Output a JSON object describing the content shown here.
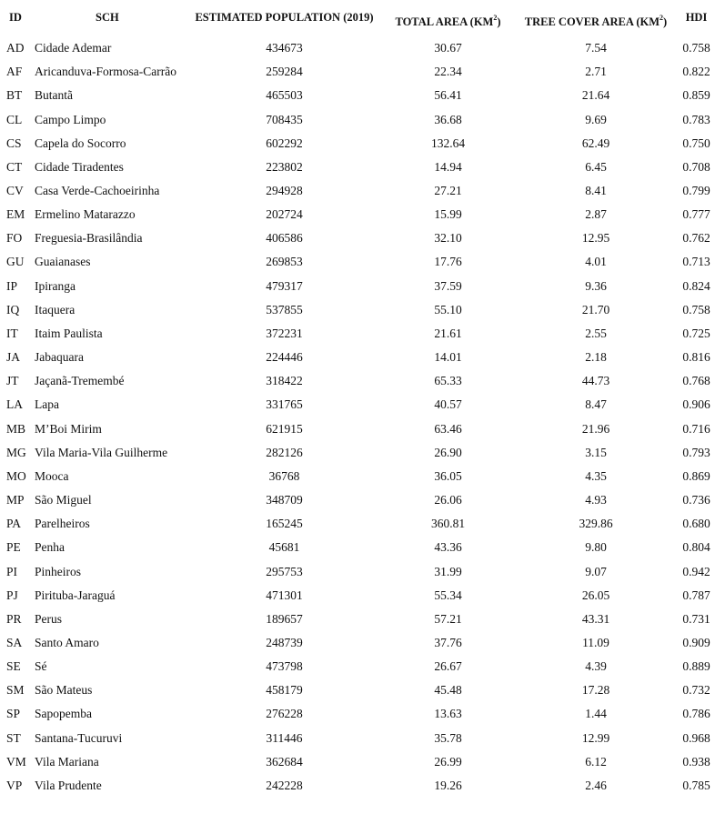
{
  "table": {
    "headers": {
      "id": "ID",
      "sch": "SCH",
      "population": "ESTIMATED POPULATION (2019)",
      "total_area": "TOTAL AREA (KM",
      "total_area_sup": "2",
      "total_area_end": ")",
      "tree_cover": "TREE COVER AREA (KM",
      "tree_cover_sup": "2",
      "tree_cover_end": ")",
      "hdi": "HDI"
    },
    "rows": [
      {
        "id": "AD",
        "sch": "Cidade Ademar",
        "population": "434673",
        "total_area": "30.67",
        "tree_cover": "7.54",
        "hdi": "0.758"
      },
      {
        "id": "AF",
        "sch": "Aricanduva-Formosa-Carrão",
        "population": "259284",
        "total_area": "22.34",
        "tree_cover": "2.71",
        "hdi": "0.822"
      },
      {
        "id": "BT",
        "sch": "Butantã",
        "population": "465503",
        "total_area": "56.41",
        "tree_cover": "21.64",
        "hdi": "0.859"
      },
      {
        "id": "CL",
        "sch": "Campo Limpo",
        "population": "708435",
        "total_area": "36.68",
        "tree_cover": "9.69",
        "hdi": "0.783"
      },
      {
        "id": "CS",
        "sch": "Capela do Socorro",
        "population": "602292",
        "total_area": "132.64",
        "tree_cover": "62.49",
        "hdi": "0.750"
      },
      {
        "id": "CT",
        "sch": "Cidade Tiradentes",
        "population": "223802",
        "total_area": "14.94",
        "tree_cover": "6.45",
        "hdi": "0.708"
      },
      {
        "id": "CV",
        "sch": "Casa Verde-Cachoeirinha",
        "population": "294928",
        "total_area": "27.21",
        "tree_cover": "8.41",
        "hdi": "0.799"
      },
      {
        "id": "EM",
        "sch": "Ermelino Matarazzo",
        "population": "202724",
        "total_area": "15.99",
        "tree_cover": "2.87",
        "hdi": "0.777"
      },
      {
        "id": "FO",
        "sch": "Freguesia-Brasilândia",
        "population": "406586",
        "total_area": "32.10",
        "tree_cover": "12.95",
        "hdi": "0.762"
      },
      {
        "id": "GU",
        "sch": "Guaianases",
        "population": "269853",
        "total_area": "17.76",
        "tree_cover": "4.01",
        "hdi": "0.713"
      },
      {
        "id": "IP",
        "sch": "Ipiranga",
        "population": "479317",
        "total_area": "37.59",
        "tree_cover": "9.36",
        "hdi": "0.824"
      },
      {
        "id": "IQ",
        "sch": "Itaquera",
        "population": "537855",
        "total_area": "55.10",
        "tree_cover": "21.70",
        "hdi": "0.758"
      },
      {
        "id": "IT",
        "sch": "Itaim Paulista",
        "population": "372231",
        "total_area": "21.61",
        "tree_cover": "2.55",
        "hdi": "0.725"
      },
      {
        "id": "JA",
        "sch": "Jabaquara",
        "population": "224446",
        "total_area": "14.01",
        "tree_cover": "2.18",
        "hdi": "0.816"
      },
      {
        "id": "JT",
        "sch": "Jaçanã-Tremembé",
        "population": "318422",
        "total_area": "65.33",
        "tree_cover": "44.73",
        "hdi": "0.768"
      },
      {
        "id": "LA",
        "sch": "Lapa",
        "population": "331765",
        "total_area": "40.57",
        "tree_cover": "8.47",
        "hdi": "0.906"
      },
      {
        "id": "MB",
        "sch": "M’Boi Mirim",
        "population": "621915",
        "total_area": "63.46",
        "tree_cover": "21.96",
        "hdi": "0.716"
      },
      {
        "id": "MG",
        "sch": "Vila Maria-Vila Guilherme",
        "population": "282126",
        "total_area": "26.90",
        "tree_cover": "3.15",
        "hdi": "0.793"
      },
      {
        "id": "MO",
        "sch": "Mooca",
        "population": "36768",
        "total_area": "36.05",
        "tree_cover": "4.35",
        "hdi": "0.869"
      },
      {
        "id": "MP",
        "sch": "São Miguel",
        "population": "348709",
        "total_area": "26.06",
        "tree_cover": "4.93",
        "hdi": "0.736"
      },
      {
        "id": "PA",
        "sch": "Parelheiros",
        "population": "165245",
        "total_area": "360.81",
        "tree_cover": "329.86",
        "hdi": "0.680"
      },
      {
        "id": "PE",
        "sch": "Penha",
        "population": "45681",
        "total_area": "43.36",
        "tree_cover": "9.80",
        "hdi": "0.804"
      },
      {
        "id": "PI",
        "sch": "Pinheiros",
        "population": "295753",
        "total_area": "31.99",
        "tree_cover": "9.07",
        "hdi": "0.942"
      },
      {
        "id": "PJ",
        "sch": "Pirituba-Jaraguá",
        "population": "471301",
        "total_area": "55.34",
        "tree_cover": "26.05",
        "hdi": "0.787"
      },
      {
        "id": "PR",
        "sch": "Perus",
        "population": "189657",
        "total_area": "57.21",
        "tree_cover": "43.31",
        "hdi": "0.731"
      },
      {
        "id": "SA",
        "sch": "Santo Amaro",
        "population": "248739",
        "total_area": "37.76",
        "tree_cover": "11.09",
        "hdi": "0.909"
      },
      {
        "id": "SE",
        "sch": "Sé",
        "population": "473798",
        "total_area": "26.67",
        "tree_cover": "4.39",
        "hdi": "0.889"
      },
      {
        "id": "SM",
        "sch": "São Mateus",
        "population": "458179",
        "total_area": "45.48",
        "tree_cover": "17.28",
        "hdi": "0.732"
      },
      {
        "id": "SP",
        "sch": "Sapopemba",
        "population": "276228",
        "total_area": "13.63",
        "tree_cover": "1.44",
        "hdi": "0.786"
      },
      {
        "id": "ST",
        "sch": "Santana-Tucuruvi",
        "population": "311446",
        "total_area": "35.78",
        "tree_cover": "12.99",
        "hdi": "0.968"
      },
      {
        "id": "VM",
        "sch": "Vila Mariana",
        "population": "362684",
        "total_area": "26.99",
        "tree_cover": "6.12",
        "hdi": "0.938"
      },
      {
        "id": "VP",
        "sch": "Vila Prudente",
        "population": "242228",
        "total_area": "19.26",
        "tree_cover": "2.46",
        "hdi": "0.785"
      }
    ]
  }
}
